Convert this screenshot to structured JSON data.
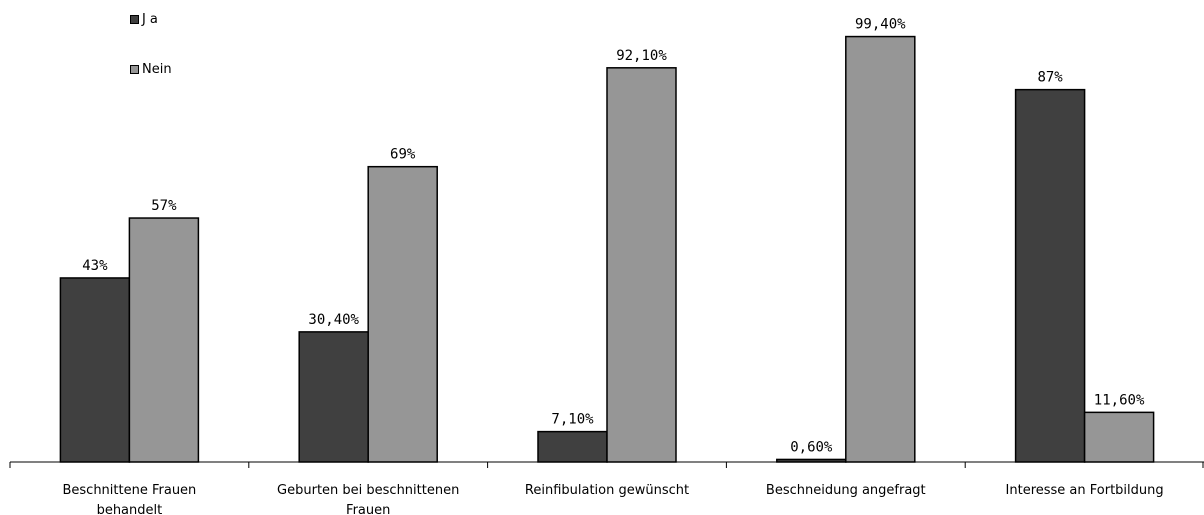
{
  "chart_data": {
    "type": "bar",
    "categories": [
      [
        "Beschnittene Frauen",
        "behandelt"
      ],
      [
        "Geburten bei beschnittenen",
        "Frauen"
      ],
      [
        "Reinfibulation gewünscht"
      ],
      [
        "Beschneidung angefragt"
      ],
      [
        "Interesse an Fortbildung"
      ]
    ],
    "series": [
      {
        "name": "Ja",
        "color": "#404040",
        "values": [
          43,
          30.4,
          7.1,
          0.6,
          87
        ],
        "labels": [
          "43%",
          "30,40%",
          "7,10%",
          "0,60%",
          "87%"
        ]
      },
      {
        "name": "Nein",
        "color": "#969696",
        "values": [
          57,
          69,
          92.1,
          99.4,
          11.6
        ],
        "labels": [
          "57%",
          "69%",
          "92,10%",
          "99,40%",
          "11,60%"
        ]
      }
    ],
    "ylim": [
      0,
      100
    ],
    "grid": false,
    "legend": "top-left"
  }
}
